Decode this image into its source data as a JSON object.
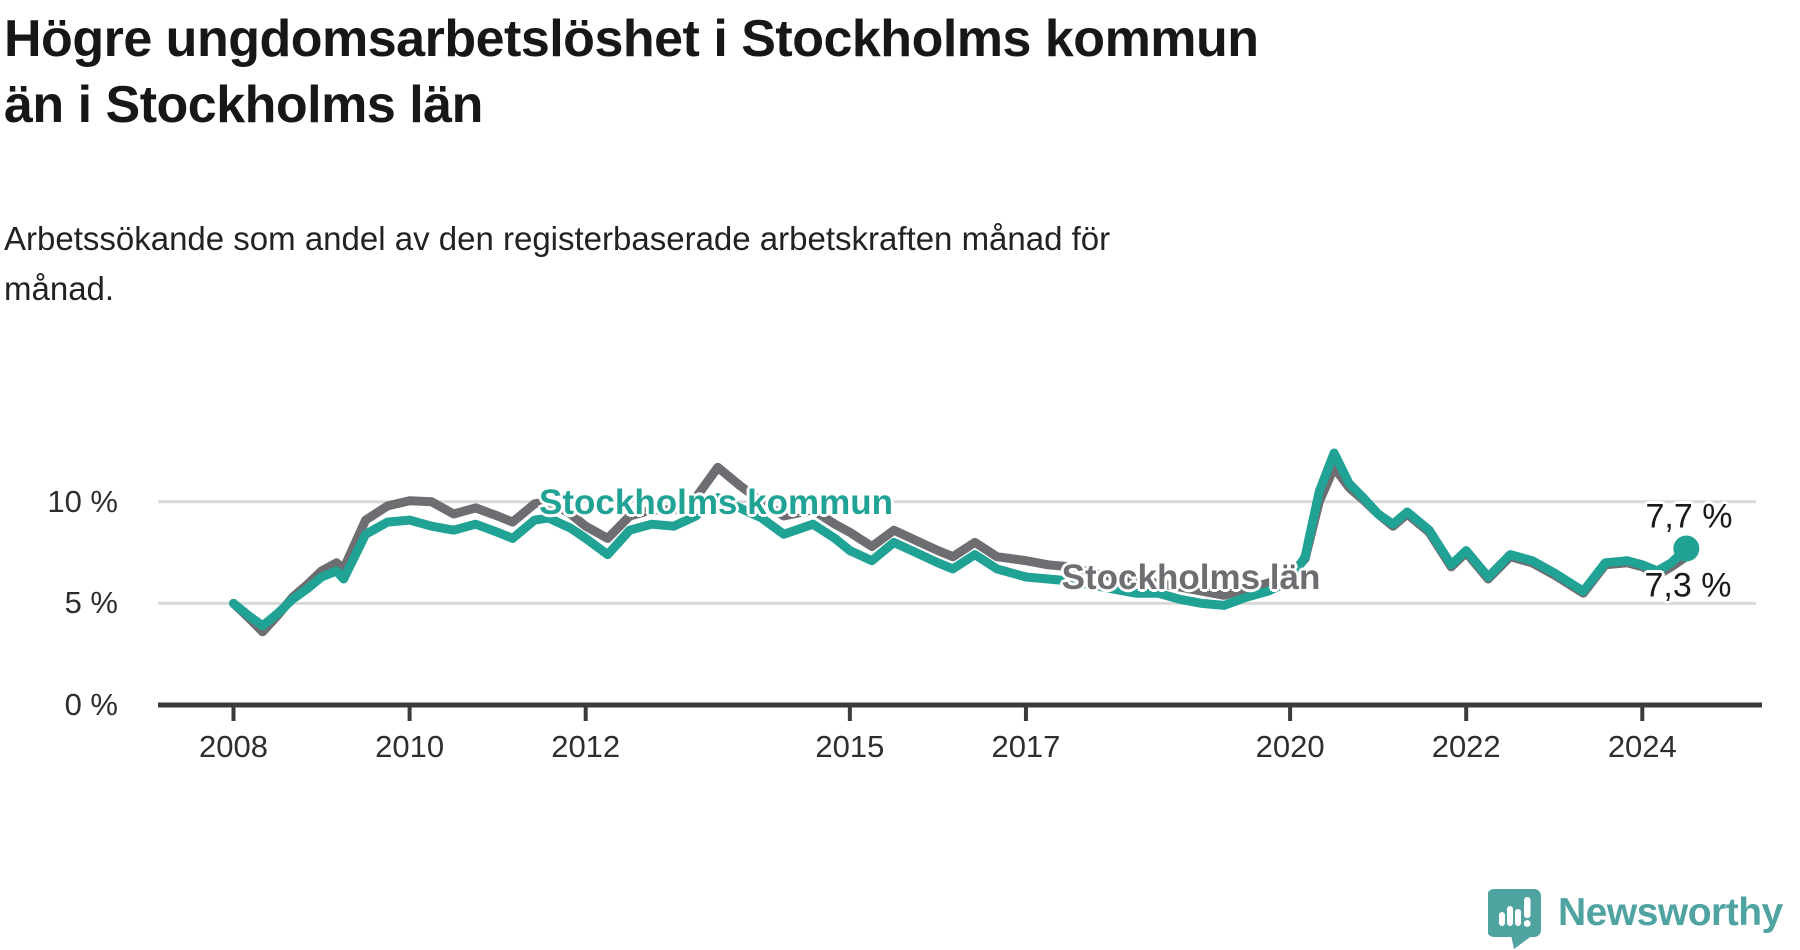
{
  "header": {
    "title_lines": [
      "Högre ungdomsarbetslöshet i Stockholms kommun",
      "än i Stockholms län"
    ],
    "subtitle_lines": [
      "Arbetssökande som andel av den registerbaserade arbetskraften månad för",
      "månad."
    ]
  },
  "chart_data": {
    "type": "line",
    "title": "Högre ungdomsarbetslöshet i Stockholms kommun än i Stockholms län",
    "subtitle": "Arbetssökande som andel av den registerbaserade arbetskraften månad för månad.",
    "xlabel": "",
    "ylabel": "",
    "x_unit": "decimal year (monthly data 2008 – mid 2024)",
    "grid": "horizontal",
    "legend": "inline-labels",
    "xlim": [
      2007.1,
      2025.3
    ],
    "ylim": [
      0,
      13
    ],
    "x_ticks": [
      2008,
      2010,
      2012,
      2015,
      2017,
      2020,
      2022,
      2024
    ],
    "y_ticks": [
      {
        "value": 0,
        "label": "0 %"
      },
      {
        "value": 5,
        "label": "5 %"
      },
      {
        "value": 10,
        "label": "10 %"
      }
    ],
    "x": [
      2008.0,
      2008.17,
      2008.33,
      2008.5,
      2008.67,
      2008.83,
      2009.0,
      2009.17,
      2009.25,
      2009.5,
      2009.75,
      2010.0,
      2010.25,
      2010.5,
      2010.75,
      2011.0,
      2011.17,
      2011.42,
      2011.58,
      2011.83,
      2012.0,
      2012.25,
      2012.5,
      2012.75,
      2013.0,
      2013.25,
      2013.5,
      2013.75,
      2014.0,
      2014.25,
      2014.58,
      2014.83,
      2015.0,
      2015.25,
      2015.5,
      2015.75,
      2016.0,
      2016.17,
      2016.42,
      2016.67,
      2017.0,
      2017.25,
      2017.5,
      2017.75,
      2018.0,
      2018.25,
      2018.5,
      2018.75,
      2019.0,
      2019.25,
      2019.5,
      2019.75,
      2020.0,
      2020.17,
      2020.33,
      2020.5,
      2020.67,
      2020.83,
      2021.0,
      2021.17,
      2021.33,
      2021.58,
      2021.83,
      2022.0,
      2022.25,
      2022.5,
      2022.75,
      2023.0,
      2023.33,
      2023.58,
      2023.83,
      2024.0,
      2024.17,
      2024.33,
      2024.5
    ],
    "series": [
      {
        "id": "lan",
        "name": "Stockholms län",
        "color": "#6e6e72",
        "end_label": "7,3 %",
        "end_marker": false,
        "values": [
          5.0,
          4.3,
          3.6,
          4.4,
          5.3,
          5.9,
          6.6,
          7.0,
          6.7,
          9.1,
          9.8,
          10.05,
          10.0,
          9.4,
          9.7,
          9.3,
          9.0,
          9.9,
          10.0,
          9.4,
          8.8,
          8.2,
          9.3,
          9.6,
          9.6,
          10.2,
          11.7,
          10.8,
          10.0,
          9.3,
          9.6,
          8.9,
          8.5,
          7.8,
          8.6,
          8.1,
          7.6,
          7.3,
          8.0,
          7.3,
          7.1,
          6.9,
          6.8,
          6.5,
          6.3,
          6.1,
          6.0,
          5.8,
          5.6,
          5.4,
          5.7,
          6.0,
          6.4,
          7.2,
          10.0,
          11.7,
          10.7,
          10.1,
          9.4,
          8.8,
          9.4,
          8.5,
          6.8,
          7.5,
          6.2,
          7.3,
          7.0,
          6.4,
          5.5,
          6.9,
          7.0,
          6.8,
          6.4,
          6.8,
          7.3
        ]
      },
      {
        "id": "kommun",
        "name": "Stockholms kommun",
        "color": "#20a294",
        "end_label": "7,7 %",
        "end_marker": true,
        "values": [
          5.0,
          4.4,
          3.9,
          4.5,
          5.2,
          5.7,
          6.3,
          6.6,
          6.2,
          8.4,
          9.0,
          9.1,
          8.8,
          8.6,
          8.9,
          8.5,
          8.2,
          9.1,
          9.2,
          8.7,
          8.2,
          7.4,
          8.6,
          8.9,
          8.8,
          9.3,
          10.2,
          9.7,
          9.2,
          8.4,
          8.9,
          8.2,
          7.6,
          7.1,
          8.0,
          7.5,
          7.0,
          6.7,
          7.4,
          6.7,
          6.3,
          6.2,
          6.1,
          5.9,
          5.7,
          5.5,
          5.5,
          5.2,
          5.0,
          4.9,
          5.3,
          5.6,
          6.1,
          7.3,
          10.5,
          12.4,
          10.9,
          10.2,
          9.4,
          8.9,
          9.5,
          8.6,
          6.9,
          7.6,
          6.3,
          7.4,
          7.1,
          6.5,
          5.6,
          7.0,
          7.1,
          6.9,
          6.6,
          7.0,
          7.7
        ]
      }
    ]
  },
  "footer": {
    "brand": "Newsworthy"
  },
  "colors": {
    "kommun_line": "#20a294",
    "lan_line": "#6e6e72",
    "grid": "#d9d9d9",
    "axis": "#3b3b3b",
    "tick_text": "#2e2e2e",
    "value_text": "#1a1a1a",
    "logo": "#4fa3a1",
    "background": "#ffffff"
  }
}
